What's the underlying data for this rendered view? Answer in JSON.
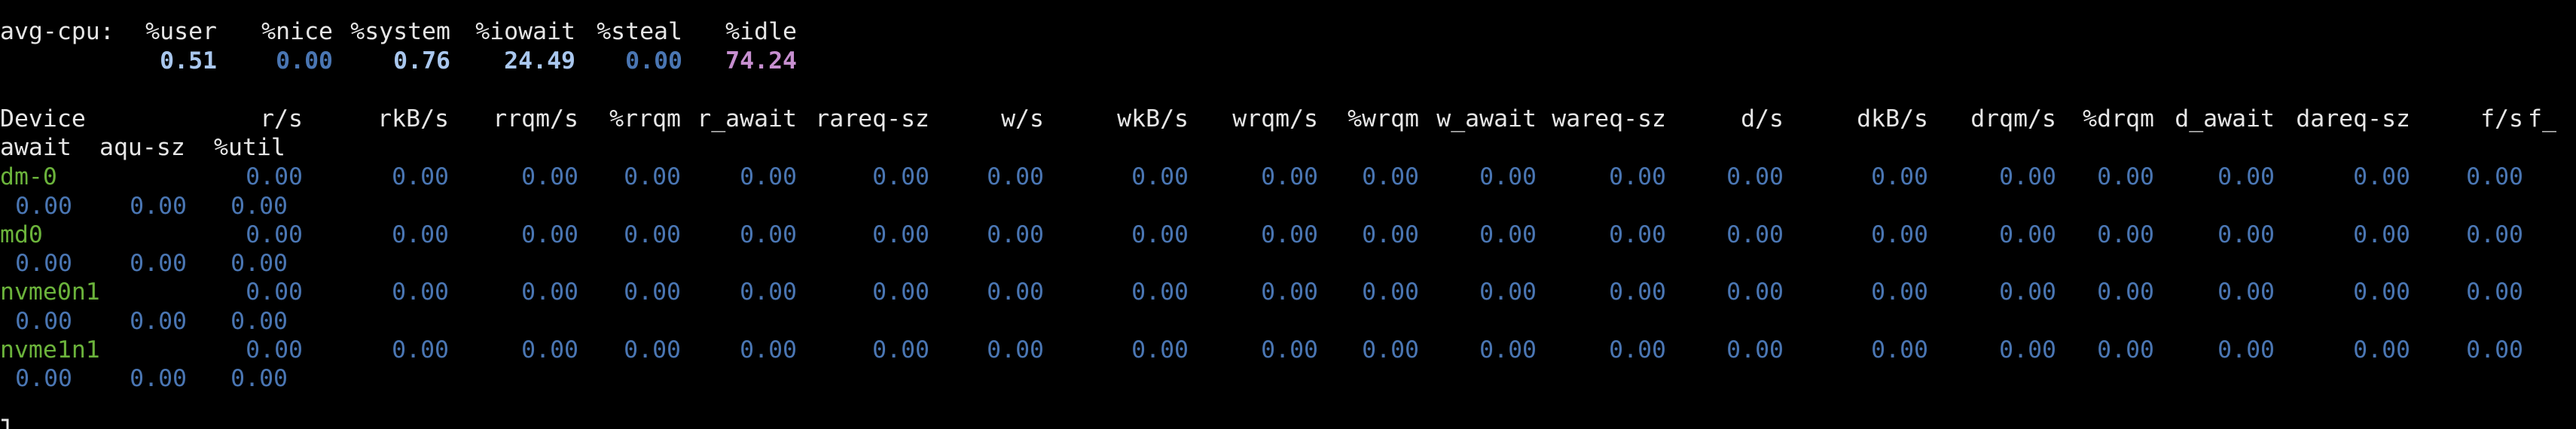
{
  "cpu": {
    "label": "avg-cpu:",
    "headers": [
      "%user",
      "%nice",
      "%system",
      "%iowait",
      "%steal",
      "%idle"
    ],
    "values": [
      "0.51",
      "0.00",
      "0.76",
      "24.49",
      "0.00",
      "74.24"
    ],
    "colors": [
      "#a9c7ee",
      "#4a76b3",
      "#a9c7ee",
      "#a9c7ee",
      "#4a76b3",
      "#c78fd0"
    ]
  },
  "device_table": {
    "headers_line1": [
      "Device",
      "r/s",
      "rkB/s",
      "rrqm/s",
      "%rrqm",
      "r_await",
      "rareq-sz",
      "w/s",
      "wkB/s",
      "wrqm/s",
      "%wrqm",
      "w_await",
      "wareq-sz",
      "d/s",
      "dkB/s",
      "drqm/s",
      "%drqm",
      "d_await",
      "dareq-sz",
      "f/s",
      "f_"
    ],
    "headers_line2": [
      "await",
      "aqu-sz",
      "%util"
    ],
    "rows": [
      {
        "device": "dm-0",
        "values1": [
          "0.00",
          "0.00",
          "0.00",
          "0.00",
          "0.00",
          "0.00",
          "0.00",
          "0.00",
          "0.00",
          "0.00",
          "0.00",
          "0.00",
          "0.00",
          "0.00",
          "0.00",
          "0.00",
          "0.00",
          "0.00",
          "0.00"
        ],
        "values2": [
          "0.00",
          "0.00",
          "0.00"
        ]
      },
      {
        "device": "md0",
        "values1": [
          "0.00",
          "0.00",
          "0.00",
          "0.00",
          "0.00",
          "0.00",
          "0.00",
          "0.00",
          "0.00",
          "0.00",
          "0.00",
          "0.00",
          "0.00",
          "0.00",
          "0.00",
          "0.00",
          "0.00",
          "0.00",
          "0.00"
        ],
        "values2": [
          "0.00",
          "0.00",
          "0.00"
        ]
      },
      {
        "device": "nvme0n1",
        "values1": [
          "0.00",
          "0.00",
          "0.00",
          "0.00",
          "0.00",
          "0.00",
          "0.00",
          "0.00",
          "0.00",
          "0.00",
          "0.00",
          "0.00",
          "0.00",
          "0.00",
          "0.00",
          "0.00",
          "0.00",
          "0.00",
          "0.00"
        ],
        "values2": [
          "0.00",
          "0.00",
          "0.00"
        ]
      },
      {
        "device": "nvme1n1",
        "values1": [
          "0.00",
          "0.00",
          "0.00",
          "0.00",
          "0.00",
          "0.00",
          "0.00",
          "0.00",
          "0.00",
          "0.00",
          "0.00",
          "0.00",
          "0.00",
          "0.00",
          "0.00",
          "0.00",
          "0.00",
          "0.00",
          "0.00"
        ],
        "values2": [
          "0.00",
          "0.00",
          "0.00"
        ]
      }
    ]
  },
  "colors": {
    "background": "#000000",
    "text": "#e6e6e6",
    "device_name": "#6bb33b",
    "zero_value": "#4a76b3"
  }
}
